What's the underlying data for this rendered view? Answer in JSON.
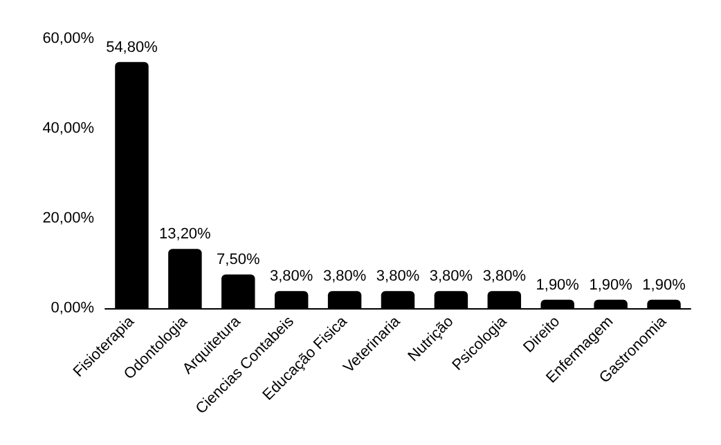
{
  "chart_data": {
    "type": "bar",
    "categories": [
      "Fisioterapia",
      "Odontologia",
      "Arquitetura",
      "Ciencias Contabeis",
      "Educação Fisica",
      "Veterinaria",
      "Nutrição",
      "Psicologia",
      "Direito",
      "Enfermagem",
      "Gastronomia"
    ],
    "values": [
      54.8,
      13.2,
      7.5,
      3.8,
      3.8,
      3.8,
      3.8,
      3.8,
      1.9,
      1.9,
      1.9
    ],
    "value_labels": [
      "54,80%",
      "13,20%",
      "7,50%",
      "3,80%",
      "3,80%",
      "3,80%",
      "3,80%",
      "3,80%",
      "1,90%",
      "1,90%",
      "1,90%"
    ],
    "color": "#000000",
    "ylim": [
      0,
      60
    ],
    "yticks": [
      {
        "value": 0,
        "label": "0,00%"
      },
      {
        "value": 20,
        "label": "20,00%"
      },
      {
        "value": 40,
        "label": "40,00%"
      },
      {
        "value": 60,
        "label": "60,00%"
      }
    ],
    "grid": false
  }
}
